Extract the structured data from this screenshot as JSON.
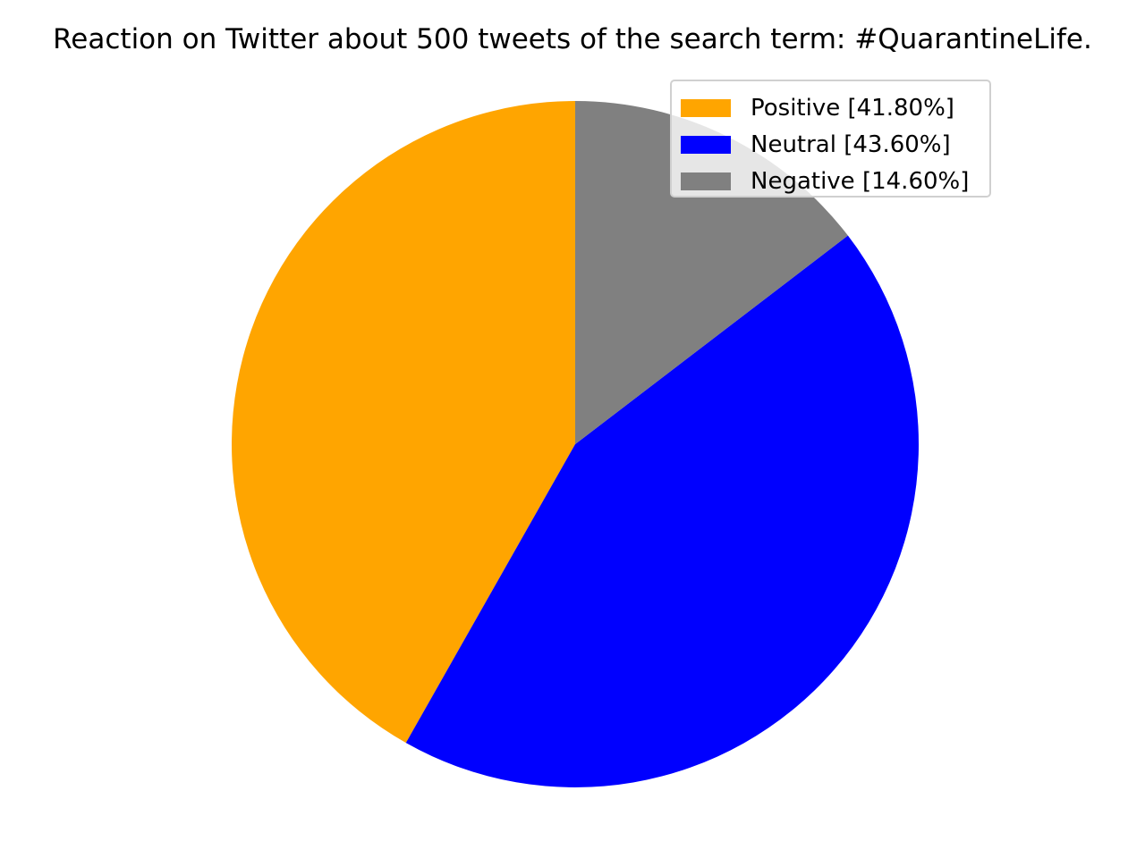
{
  "chart_data": {
    "type": "pie",
    "title": "Reaction on Twitter about 500 tweets of the search term: #QuarantineLife.",
    "slices": [
      {
        "label": "Positive [41.80%]",
        "value": 41.8,
        "color": "#ffa500"
      },
      {
        "label": "Neutral [43.60%]",
        "value": 43.6,
        "color": "#0000ff"
      },
      {
        "label": "Negative [14.60%]",
        "value": 14.6,
        "color": "#808080"
      }
    ],
    "start_angle_deg": 90,
    "direction": "counterclockwise",
    "legend_position": "top-right"
  }
}
